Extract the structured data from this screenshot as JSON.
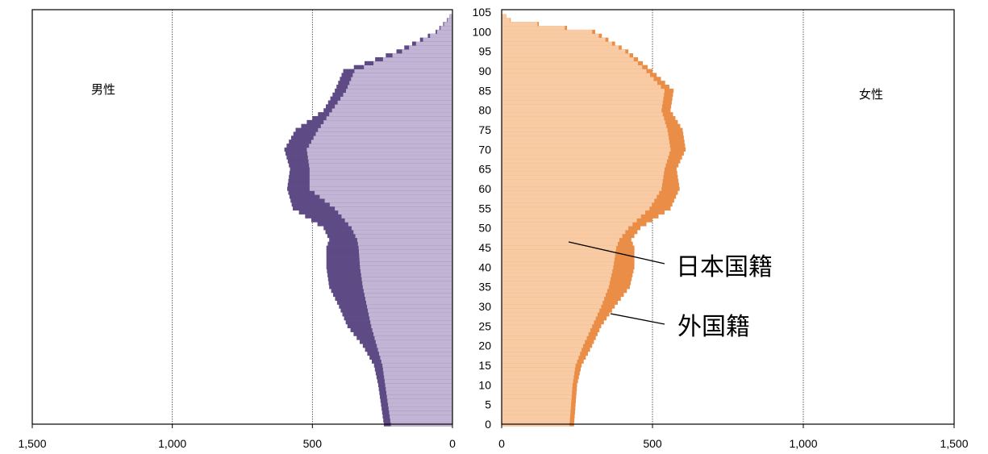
{
  "chart_data": {
    "type": "bar",
    "orientation": "horizontal-population-pyramid",
    "panels": {
      "male": {
        "label": "男性"
      },
      "female": {
        "label": "女性"
      }
    },
    "series": [
      {
        "name": "日本国籍",
        "colors": {
          "male": "#c2b4d4",
          "female": "#f9cba4"
        }
      },
      {
        "name": "外国籍",
        "colors": {
          "male": "#5e4a85",
          "female": "#ea8d46"
        }
      }
    ],
    "annotations": [
      {
        "text": "日本国籍",
        "target": "日本国籍"
      },
      {
        "text": "外国籍",
        "target": "外国籍"
      }
    ],
    "x_ticks_male": [
      "1,500",
      "1,000",
      "500",
      "0"
    ],
    "x_ticks_female": [
      "0",
      "500",
      "1,000",
      "1,500"
    ],
    "y_ticks": [
      "0",
      "5",
      "10",
      "15",
      "20",
      "25",
      "30",
      "35",
      "40",
      "45",
      "50",
      "55",
      "60",
      "65",
      "70",
      "75",
      "80",
      "85",
      "90",
      "95",
      "100",
      "105"
    ],
    "xlim": [
      0,
      1500
    ],
    "ylim": [
      0,
      105
    ],
    "grid": "vertical dotted lines at 500 and 1,000",
    "age_profile_points": [
      0,
      5,
      10,
      15,
      20,
      25,
      30,
      35,
      40,
      45,
      47,
      50,
      55,
      60,
      65,
      70,
      75,
      80,
      85,
      90,
      95,
      100,
      103,
      105
    ],
    "male": {
      "total": [
        245,
        255,
        265,
        280,
        320,
        375,
        405,
        440,
        450,
        450,
        440,
        460,
        570,
        590,
        580,
        600,
        560,
        460,
        420,
        390,
        200,
        60,
        20,
        0
      ],
      "japanese": [
        220,
        230,
        240,
        250,
        270,
        290,
        305,
        320,
        330,
        335,
        340,
        360,
        420,
        510,
        510,
        520,
        480,
        430,
        380,
        350,
        180,
        55,
        18,
        0
      ]
    },
    "female": {
      "total": [
        240,
        245,
        250,
        265,
        300,
        330,
        375,
        425,
        440,
        440,
        430,
        460,
        560,
        590,
        580,
        610,
        600,
        560,
        570,
        500,
        420,
        310,
        30,
        0
      ],
      "japanese": [
        225,
        230,
        235,
        245,
        270,
        300,
        330,
        355,
        370,
        380,
        390,
        420,
        490,
        530,
        540,
        560,
        550,
        530,
        540,
        480,
        410,
        300,
        28,
        0
      ]
    }
  }
}
